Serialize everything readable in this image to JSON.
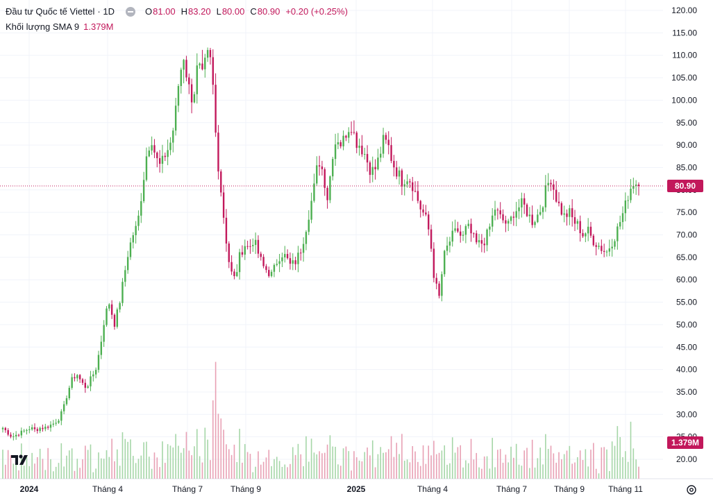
{
  "legend": {
    "symbol": "Đầu tư Quốc tế Viettel",
    "interval": "· 1D",
    "open_label": "O",
    "open": "81.00",
    "high_label": "H",
    "high": "83.20",
    "low_label": "L",
    "low": "80.00",
    "close_label": "C",
    "close": "80.90",
    "change": "+0.20 (+0.25%)",
    "volume_label": "Khối lượng SMA 9",
    "volume_value": "1.379M"
  },
  "price_tag": "80.90",
  "volume_tag": "1.379M",
  "colors": {
    "up": "#26a69a",
    "up_candle": "#4caf50",
    "down": "#c2185b",
    "volume_up": "#a5d6a7",
    "volume_down": "#e8a0b4",
    "price_line": "#c2185b",
    "grid": "#f0f3fa",
    "text": "#131722"
  },
  "icons": {
    "logo": "tradingview-logo",
    "settings": "settings-icon"
  },
  "chart_data": {
    "type": "candlestick",
    "y_axis": {
      "min": 15,
      "max": 120,
      "step": 5,
      "ticks": [
        "120.00",
        "115.00",
        "110.00",
        "105.00",
        "100.00",
        "95.00",
        "90.00",
        "85.00",
        "80.00",
        "75.00",
        "70.00",
        "65.00",
        "60.00",
        "55.00",
        "50.00",
        "45.00",
        "40.00",
        "35.00",
        "30.00",
        "25.00",
        "20.00"
      ]
    },
    "x_axis_labels": [
      {
        "label": "2024",
        "bold": true
      },
      {
        "label": "Tháng 4",
        "bold": false
      },
      {
        "label": "Tháng 7",
        "bold": false
      },
      {
        "label": "Tháng 9",
        "bold": false
      },
      {
        "label": "2025",
        "bold": true
      },
      {
        "label": "Tháng 4",
        "bold": false
      },
      {
        "label": "Tháng 7",
        "bold": false
      },
      {
        "label": "Tháng 9",
        "bold": false
      },
      {
        "label": "Tháng 11",
        "bold": false
      }
    ],
    "current_price": 80.9,
    "grid": true,
    "close_path": [
      27,
      26,
      25,
      25.5,
      26,
      26.5,
      27,
      26.5,
      27,
      27,
      27.5,
      28,
      29,
      31,
      35,
      38,
      39,
      37,
      36,
      38,
      40,
      45,
      52,
      55,
      50,
      54,
      60,
      66,
      70,
      72,
      80,
      88,
      92,
      87,
      85,
      88,
      90,
      95,
      105,
      110,
      103,
      100,
      108,
      105,
      110,
      108,
      90,
      80,
      70,
      62,
      60,
      65,
      68,
      67,
      69,
      66,
      63,
      62,
      61,
      64,
      66,
      65,
      63,
      64,
      66,
      70,
      75,
      80,
      87,
      84,
      78,
      88,
      92,
      90,
      93,
      95,
      91,
      90,
      88,
      85,
      84,
      87,
      91,
      90,
      86,
      84,
      82,
      83,
      82,
      79,
      76,
      74,
      70,
      60,
      56,
      65,
      68,
      70,
      71,
      69,
      72,
      70,
      68,
      68,
      69,
      72,
      76,
      74,
      73,
      72,
      75,
      76,
      77,
      75,
      73,
      74,
      76,
      80,
      83,
      79,
      76,
      74,
      75,
      73,
      72,
      70,
      71,
      69,
      68,
      67,
      66,
      68,
      70,
      73,
      76,
      80,
      82,
      80.9
    ],
    "volume_scale_note": "volume pane: 0 to ~45M"
  }
}
